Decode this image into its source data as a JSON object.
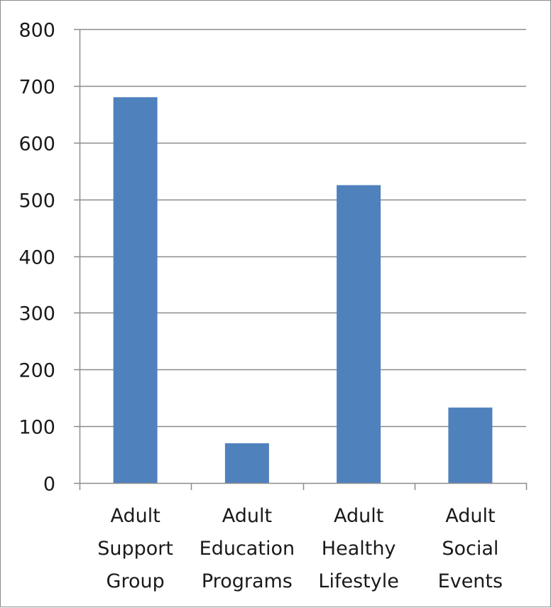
{
  "chart_data": {
    "type": "bar",
    "title": "",
    "xlabel": "",
    "ylabel": "",
    "categories": [
      [
        "Adult",
        "Support",
        "Group"
      ],
      [
        "Adult",
        "Education",
        "Programs"
      ],
      [
        "Adult",
        "Healthy",
        "Lifestyle"
      ],
      [
        "Adult",
        "Social",
        "Events"
      ]
    ],
    "values": [
      680,
      70,
      525,
      133
    ],
    "ylim": [
      0,
      800
    ],
    "yticks": [
      "0",
      "100",
      "200",
      "300",
      "400",
      "500",
      "600",
      "700",
      "800"
    ],
    "grid": true,
    "legend": "none",
    "colors": {
      "bar": "#4f81bd",
      "grid": "#8c8c8c",
      "axis": "#8c8c8c"
    }
  }
}
